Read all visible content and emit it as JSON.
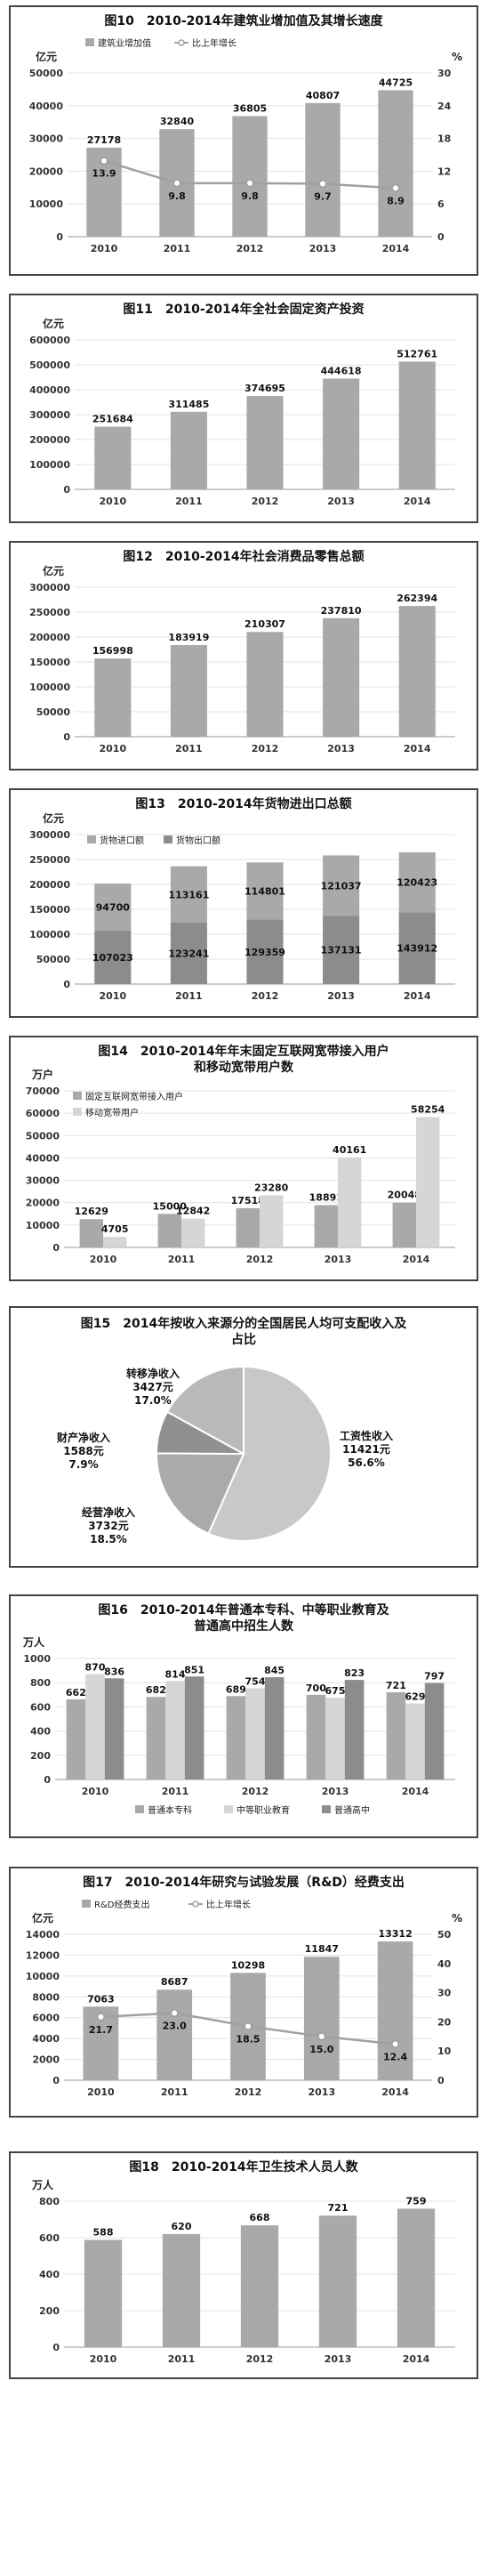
{
  "chart_data": [
    {
      "type": "bar",
      "title": "图10　2010-2014年建筑业增加值及其增长速度",
      "ylabel": "亿元",
      "y2label": "%",
      "categories": [
        "2010",
        "2011",
        "2012",
        "2013",
        "2014"
      ],
      "ylim": [
        0,
        50000
      ],
      "yticks": [
        0,
        10000,
        20000,
        30000,
        40000,
        50000
      ],
      "y2lim": [
        0,
        30
      ],
      "y2ticks": [
        0,
        6,
        12,
        18,
        24,
        30
      ],
      "series": [
        {
          "name": "建筑业增加值",
          "type": "bar",
          "values": [
            27178,
            32840,
            36805,
            40807,
            44725
          ]
        },
        {
          "name": "比上年增长",
          "type": "line",
          "axis": "y2",
          "values": [
            13.9,
            9.8,
            9.8,
            9.7,
            8.9
          ]
        }
      ],
      "legend": "top-left",
      "grid": true
    },
    {
      "type": "bar",
      "title": "图11　2010-2014年全社会固定资产投资",
      "ylabel": "亿元",
      "categories": [
        "2010",
        "2011",
        "2012",
        "2013",
        "2014"
      ],
      "ylim": [
        0,
        600000
      ],
      "yticks": [
        0,
        100000,
        200000,
        300000,
        400000,
        500000,
        600000
      ],
      "values": [
        251684,
        311485,
        374695,
        444618,
        512761
      ],
      "grid": true
    },
    {
      "type": "bar",
      "title": "图12　2010-2014年社会消费品零售总额",
      "ylabel": "亿元",
      "categories": [
        "2010",
        "2011",
        "2012",
        "2013",
        "2014"
      ],
      "ylim": [
        0,
        300000
      ],
      "yticks": [
        0,
        50000,
        100000,
        150000,
        200000,
        250000,
        300000
      ],
      "values": [
        156998,
        183919,
        210307,
        237810,
        262394
      ],
      "grid": true
    },
    {
      "type": "bar",
      "stacked": true,
      "title": "图13　2010-2014年货物进出口总额",
      "ylabel": "亿元",
      "categories": [
        "2010",
        "2011",
        "2012",
        "2013",
        "2014"
      ],
      "ylim": [
        0,
        300000
      ],
      "yticks": [
        0,
        50000,
        100000,
        150000,
        200000,
        250000,
        300000
      ],
      "series": [
        {
          "name": "货物出口额",
          "values": [
            107023,
            123241,
            129359,
            137131,
            143912
          ]
        },
        {
          "name": "货物进口额",
          "values": [
            94700,
            113161,
            114801,
            121037,
            120423
          ]
        }
      ],
      "legend": "top-left",
      "grid": true
    },
    {
      "type": "bar",
      "title": "图14　2010-2014年年末固定互联网宽带接入用户",
      "title2": "和移动宽带用户数",
      "ylabel": "万户",
      "categories": [
        "2010",
        "2011",
        "2012",
        "2013",
        "2014"
      ],
      "ylim": [
        0,
        70000
      ],
      "yticks": [
        0,
        10000,
        20000,
        30000,
        40000,
        50000,
        60000,
        70000
      ],
      "series": [
        {
          "name": "固定互联网宽带接入用户",
          "values": [
            12629,
            15000,
            17518,
            18891,
            20048
          ]
        },
        {
          "name": "移动宽带用户",
          "values": [
            4705,
            12842,
            23280,
            40161,
            58254
          ]
        }
      ],
      "legend": "top-left",
      "grid": true
    },
    {
      "type": "pie",
      "title": "图15　2014年按收入来源分的全国居民人均可支配收入及",
      "title2": "占比",
      "slices": [
        {
          "name": "工资性收入",
          "value": 11421,
          "valueText": "11421元",
          "percent": 56.6,
          "percentText": "56.6%"
        },
        {
          "name": "经营净收入",
          "value": 3732,
          "valueText": "3732元",
          "percent": 18.5,
          "percentText": "18.5%"
        },
        {
          "name": "财产净收入",
          "value": 1588,
          "valueText": "1588元",
          "percent": 7.9,
          "percentText": "7.9%"
        },
        {
          "name": "转移净收入",
          "value": 3427,
          "valueText": "3427元",
          "percent": 17.0,
          "percentText": "17.0%"
        }
      ]
    },
    {
      "type": "bar",
      "title": "图16　2010-2014年普通本专科、中等职业教育及",
      "title2": "普通高中招生人数",
      "ylabel": "万人",
      "categories": [
        "2010",
        "2011",
        "2012",
        "2013",
        "2014"
      ],
      "ylim": [
        0,
        1000
      ],
      "yticks": [
        0,
        200,
        400,
        600,
        800,
        1000
      ],
      "series": [
        {
          "name": "普通本专科",
          "values": [
            662,
            682,
            689,
            700,
            721
          ]
        },
        {
          "name": "中等职业教育",
          "values": [
            870,
            814,
            754,
            675,
            629
          ]
        },
        {
          "name": "普通高中",
          "values": [
            836,
            851,
            845,
            823,
            797
          ]
        }
      ],
      "legend": "bottom",
      "grid": true
    },
    {
      "type": "bar",
      "title": "图17　2010-2014年研究与试验发展（R&D）经费支出",
      "ylabel": "亿元",
      "y2label": "%",
      "categories": [
        "2010",
        "2011",
        "2012",
        "2013",
        "2014"
      ],
      "ylim": [
        0,
        14000
      ],
      "yticks": [
        0,
        2000,
        4000,
        6000,
        8000,
        10000,
        12000,
        14000
      ],
      "y2lim": [
        0,
        50
      ],
      "y2ticks": [
        0,
        10,
        20,
        30,
        40,
        50
      ],
      "series": [
        {
          "name": "R&D经费支出",
          "type": "bar",
          "values": [
            7063,
            8687,
            10298,
            11847,
            13312
          ]
        },
        {
          "name": "比上年增长",
          "type": "line",
          "axis": "y2",
          "values": [
            21.7,
            23.0,
            18.5,
            15.0,
            12.4
          ]
        }
      ],
      "legend": "top-left",
      "grid": true
    },
    {
      "type": "bar",
      "title": "图18　2010-2014年卫生技术人员人数",
      "ylabel": "万人",
      "categories": [
        "2010",
        "2011",
        "2012",
        "2013",
        "2014"
      ],
      "ylim": [
        0,
        800
      ],
      "yticks": [
        0,
        200,
        400,
        600,
        800
      ],
      "values": [
        588,
        620,
        668,
        721,
        759
      ],
      "grid": true
    }
  ],
  "colors": {
    "bar_main": "#a9a9a9",
    "bar_light": "#d6d6d6",
    "bar_mid": "#8c8c8c",
    "bar_dark": "#6f6f6f",
    "line": "#a0a0a0",
    "pie": [
      "#c8c8c8",
      "#aaaaaa",
      "#909090",
      "#b9b9b9"
    ]
  }
}
